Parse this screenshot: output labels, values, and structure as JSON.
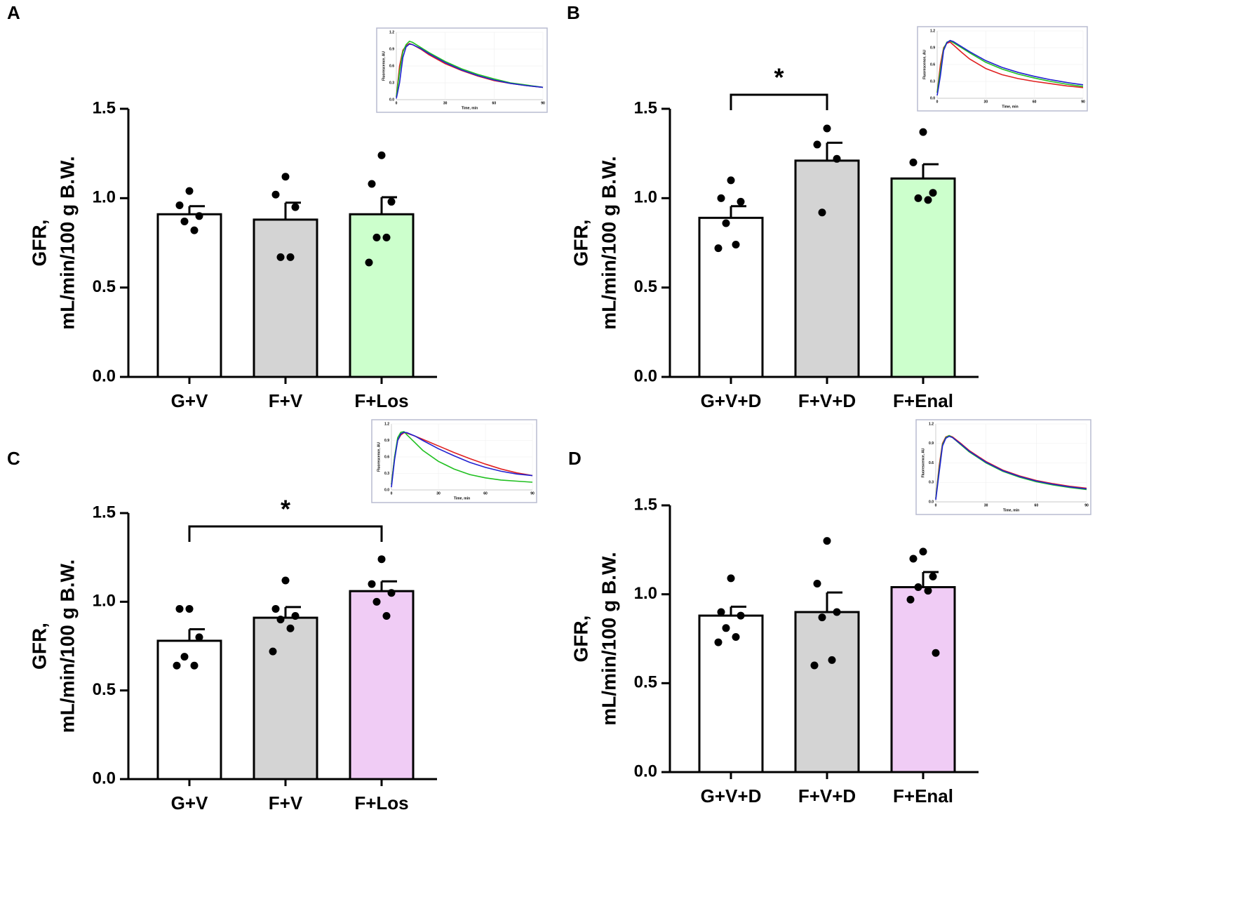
{
  "chart_data": [
    {
      "type": "bar",
      "panel_label": "A",
      "y_label": [
        "GFR,",
        "mL/min/100 g B.W."
      ],
      "categories": [
        "G+V",
        "F+V",
        "F+Los"
      ],
      "values": [
        0.91,
        0.88,
        0.91
      ],
      "errors": [
        0.045,
        0.095,
        0.095
      ],
      "points": [
        [
          1.04,
          0.96,
          0.9,
          0.87,
          0.82
        ],
        [
          1.12,
          1.02,
          0.95,
          0.67,
          0.67
        ],
        [
          1.24,
          1.08,
          0.98,
          0.78,
          0.78,
          0.64
        ]
      ],
      "colors": [
        "#ffffff",
        "#d4d4d4",
        "#ccffcc"
      ],
      "ylim": [
        0,
        1.5
      ],
      "yticks": [
        {
          "value": 0,
          "label": "0.0"
        },
        0.5,
        {
          "value": 1,
          "label": "1.0"
        },
        1.5
      ],
      "annotations": [],
      "inset": {
        "type": "line",
        "x_label": "Time, min",
        "y_label": "Fluorescence, AU",
        "xlim": [
          0,
          90
        ],
        "ylim": [
          0,
          1.2
        ],
        "xticks": [
          0,
          30,
          60,
          90
        ],
        "yticks": [
          {
            "value": 0,
            "label": "0.0"
          },
          0.3,
          0.6,
          0.9,
          1.2
        ],
        "x": [
          0,
          2,
          4,
          6,
          8,
          10,
          15,
          20,
          30,
          40,
          50,
          60,
          70,
          80,
          90
        ],
        "series": [
          {
            "color": "#e02020",
            "values": [
              0.05,
              0.6,
              0.88,
              0.96,
              1.0,
              0.98,
              0.9,
              0.8,
              0.64,
              0.52,
              0.42,
              0.34,
              0.29,
              0.25,
              0.22
            ]
          },
          {
            "color": "#20c020",
            "values": [
              0.05,
              0.5,
              0.85,
              0.98,
              1.04,
              1.02,
              0.93,
              0.84,
              0.68,
              0.55,
              0.45,
              0.37,
              0.3,
              0.26,
              0.22
            ]
          },
          {
            "color": "#2020d0",
            "values": [
              0.02,
              0.3,
              0.75,
              0.94,
              0.99,
              0.98,
              0.91,
              0.82,
              0.66,
              0.53,
              0.43,
              0.35,
              0.29,
              0.25,
              0.22
            ]
          }
        ]
      }
    },
    {
      "type": "bar",
      "panel_label": "B",
      "y_label": [
        "GFR,",
        "mL/min/100 g B.W."
      ],
      "categories": [
        "G+V+D",
        "F+V+D",
        "F+Enal"
      ],
      "values": [
        0.89,
        1.21,
        1.11
      ],
      "errors": [
        0.065,
        0.1,
        0.08
      ],
      "points": [
        [
          1.1,
          1.0,
          0.98,
          0.86,
          0.74,
          0.72
        ],
        [
          1.39,
          1.3,
          1.22,
          0.92
        ],
        [
          1.37,
          1.2,
          1.03,
          1.0,
          0.99
        ]
      ],
      "colors": [
        "#ffffff",
        "#d4d4d4",
        "#ccffcc"
      ],
      "ylim": [
        0,
        1.5
      ],
      "yticks": [
        {
          "value": 0,
          "label": "0.0"
        },
        0.5,
        {
          "value": 1,
          "label": "1.0"
        },
        1.5
      ],
      "annotations": [
        {
          "from": 0,
          "to": 1,
          "label": "*"
        }
      ],
      "inset": {
        "type": "line",
        "x_label": "Time, min",
        "y_label": "Fluorescence, AU",
        "xlim": [
          0,
          90
        ],
        "ylim": [
          0,
          1.2
        ],
        "xticks": [
          0,
          30,
          60,
          90
        ],
        "yticks": [
          {
            "value": 0,
            "label": "0.0"
          },
          0.3,
          0.6,
          0.9,
          1.2
        ],
        "x": [
          0,
          2,
          4,
          6,
          8,
          10,
          15,
          20,
          30,
          40,
          50,
          60,
          70,
          80,
          90
        ],
        "series": [
          {
            "color": "#e02020",
            "values": [
              0.1,
              0.6,
              0.9,
              0.98,
              1.0,
              0.95,
              0.82,
              0.7,
              0.53,
              0.42,
              0.35,
              0.3,
              0.26,
              0.22,
              0.19
            ]
          },
          {
            "color": "#20c020",
            "values": [
              0.1,
              0.5,
              0.88,
              1.0,
              1.02,
              0.99,
              0.9,
              0.81,
              0.64,
              0.52,
              0.43,
              0.36,
              0.3,
              0.25,
              0.21
            ]
          },
          {
            "color": "#2020d0",
            "values": [
              0.05,
              0.4,
              0.85,
              0.99,
              1.03,
              1.01,
              0.92,
              0.83,
              0.67,
              0.55,
              0.46,
              0.39,
              0.33,
              0.28,
              0.24
            ]
          }
        ]
      }
    },
    {
      "type": "bar",
      "panel_label": "C",
      "y_label": [
        "GFR,",
        "mL/min/100 g B.W."
      ],
      "categories": [
        "G+V",
        "F+V",
        "F+Los"
      ],
      "values": [
        0.78,
        0.91,
        1.06
      ],
      "errors": [
        0.065,
        0.06,
        0.055
      ],
      "points": [
        [
          0.96,
          0.96,
          0.8,
          0.69,
          0.64,
          0.64
        ],
        [
          1.12,
          0.96,
          0.92,
          0.9,
          0.85,
          0.72
        ],
        [
          1.24,
          1.1,
          1.05,
          1.0,
          0.92
        ]
      ],
      "colors": [
        "#ffffff",
        "#d4d4d4",
        "#f0ccf5"
      ],
      "ylim": [
        0,
        1.5
      ],
      "yticks": [
        {
          "value": 0,
          "label": "0.0"
        },
        0.5,
        {
          "value": 1,
          "label": "1.0"
        },
        1.5
      ],
      "annotations": [
        {
          "from": 0,
          "to": 2,
          "label": "*"
        }
      ],
      "inset": {
        "type": "line",
        "x_label": "Time, min",
        "y_label": "Fluorescence, AU",
        "xlim": [
          0,
          90
        ],
        "ylim": [
          0,
          1.2
        ],
        "xticks": [
          0,
          30,
          60,
          90
        ],
        "yticks": [
          {
            "value": 0,
            "label": "0.0"
          },
          0.3,
          0.6,
          0.9,
          1.2
        ],
        "x": [
          0,
          2,
          4,
          6,
          8,
          10,
          15,
          20,
          30,
          40,
          50,
          60,
          70,
          80,
          90
        ],
        "series": [
          {
            "color": "#e02020",
            "values": [
              0.1,
              0.6,
              0.9,
              1.0,
              1.04,
              1.03,
              0.98,
              0.92,
              0.8,
              0.68,
              0.57,
              0.47,
              0.38,
              0.31,
              0.26
            ]
          },
          {
            "color": "#20c020",
            "values": [
              0.1,
              0.6,
              0.95,
              1.05,
              1.06,
              1.0,
              0.86,
              0.72,
              0.52,
              0.38,
              0.28,
              0.22,
              0.18,
              0.16,
              0.14
            ]
          },
          {
            "color": "#2020d0",
            "values": [
              0.05,
              0.55,
              0.9,
              1.02,
              1.05,
              1.04,
              0.98,
              0.9,
              0.75,
              0.62,
              0.5,
              0.41,
              0.34,
              0.29,
              0.26
            ]
          }
        ]
      }
    },
    {
      "type": "bar",
      "panel_label": "D",
      "y_label": [
        "GFR,",
        "mL/min/100 g B.W."
      ],
      "categories": [
        "G+V+D",
        "F+V+D",
        "F+Enal"
      ],
      "values": [
        0.88,
        0.9,
        1.04
      ],
      "errors": [
        0.05,
        0.11,
        0.085
      ],
      "points": [
        [
          1.09,
          0.9,
          0.88,
          0.81,
          0.76,
          0.73
        ],
        [
          1.3,
          1.06,
          0.9,
          0.87,
          0.63,
          0.6
        ],
        [
          1.24,
          1.2,
          1.1,
          1.04,
          1.02,
          0.97,
          0.67
        ]
      ],
      "colors": [
        "#ffffff",
        "#d4d4d4",
        "#f0ccf5"
      ],
      "ylim": [
        0,
        1.5
      ],
      "yticks": [
        {
          "value": 0,
          "label": "0.0"
        },
        0.5,
        {
          "value": 1,
          "label": "1.0"
        },
        1.5
      ],
      "annotations": [],
      "inset": {
        "type": "line",
        "x_label": "Time, min",
        "y_label": "Fluorescence, AU",
        "xlim": [
          0,
          90
        ],
        "ylim": [
          0,
          1.2
        ],
        "xticks": [
          0,
          30,
          60,
          90
        ],
        "yticks": [
          {
            "value": 0,
            "label": "0.0"
          },
          0.3,
          0.6,
          0.9,
          1.2
        ],
        "x": [
          0,
          2,
          4,
          6,
          8,
          10,
          15,
          20,
          30,
          40,
          50,
          60,
          70,
          80,
          90
        ],
        "series": [
          {
            "color": "#e02020",
            "values": [
              0.05,
              0.55,
              0.9,
              1.0,
              1.02,
              1.0,
              0.9,
              0.79,
              0.62,
              0.49,
              0.4,
              0.33,
              0.28,
              0.24,
              0.21
            ]
          },
          {
            "color": "#20c020",
            "values": [
              0.05,
              0.5,
              0.88,
              0.99,
              1.02,
              0.99,
              0.88,
              0.77,
              0.6,
              0.47,
              0.38,
              0.31,
              0.26,
              0.22,
              0.19
            ]
          },
          {
            "color": "#2020d0",
            "values": [
              0.03,
              0.45,
              0.86,
              0.98,
              1.01,
              0.99,
              0.89,
              0.78,
              0.61,
              0.48,
              0.39,
              0.32,
              0.27,
              0.23,
              0.2
            ]
          }
        ]
      }
    }
  ]
}
